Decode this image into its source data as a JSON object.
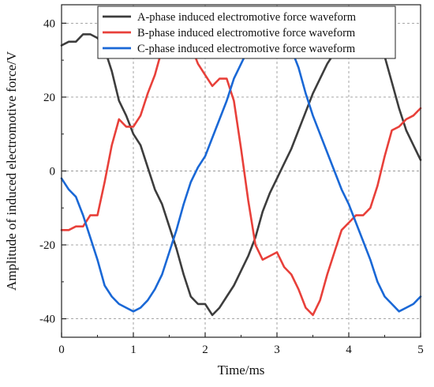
{
  "chart_data": {
    "type": "line",
    "xlabel": "Time/ms",
    "ylabel": "Amplitude of induced electromotive force/V",
    "xlim": [
      0,
      5
    ],
    "ylim": [
      -45,
      45
    ],
    "xticks": [
      0,
      1,
      2,
      3,
      4,
      5
    ],
    "yticks": [
      -40,
      -20,
      0,
      20,
      40
    ],
    "xtick_labels": [
      "0",
      "1",
      "2",
      "3",
      "4",
      "5"
    ],
    "ytick_labels": [
      "-40",
      "-20",
      "0",
      "20",
      "40"
    ],
    "grid": true,
    "legend_position": "top-right",
    "series": [
      {
        "name": "A-phase induced electromotive force waveform",
        "color": "#3d3d3d",
        "x": [
          0,
          0.1,
          0.2,
          0.3,
          0.4,
          0.5,
          0.6,
          0.7,
          0.8,
          0.9,
          1.0,
          1.1,
          1.2,
          1.3,
          1.4,
          1.5,
          1.6,
          1.7,
          1.8,
          1.9,
          2.0,
          2.1,
          2.2,
          2.3,
          2.4,
          2.5,
          2.6,
          2.7,
          2.8,
          2.9,
          3.0,
          3.1,
          3.2,
          3.3,
          3.4,
          3.5,
          3.6,
          3.7,
          3.8,
          3.9,
          4.0,
          4.1,
          4.2,
          4.3,
          4.4,
          4.5,
          4.6,
          4.7,
          4.8,
          4.9,
          5.0
        ],
        "y": [
          34,
          35,
          35,
          37,
          37,
          36,
          33,
          27,
          19,
          15,
          10,
          7,
          1,
          -5,
          -9,
          -15,
          -21,
          -28,
          -34,
          -36,
          -36,
          -39,
          -37,
          -34,
          -31,
          -27,
          -23,
          -18,
          -11,
          -6,
          -2,
          2,
          6,
          11,
          16,
          21,
          25,
          29,
          32,
          35,
          36,
          38,
          36,
          37,
          35,
          31,
          24,
          17,
          11,
          7,
          3
        ]
      },
      {
        "name": "B-phase induced electromotive force waveform",
        "color": "#e8403a",
        "x": [
          0,
          0.1,
          0.2,
          0.3,
          0.4,
          0.5,
          0.6,
          0.7,
          0.8,
          0.9,
          1.0,
          1.1,
          1.2,
          1.3,
          1.4,
          1.5,
          1.6,
          1.7,
          1.8,
          1.9,
          2.0,
          2.1,
          2.2,
          2.3,
          2.4,
          2.5,
          2.6,
          2.7,
          2.8,
          2.9,
          3.0,
          3.1,
          3.2,
          3.3,
          3.4,
          3.5,
          3.6,
          3.7,
          3.8,
          3.9,
          4.0,
          4.1,
          4.2,
          4.3,
          4.4,
          4.5,
          4.6,
          4.7,
          4.8,
          4.9,
          5.0
        ],
        "y": [
          -16,
          -16,
          -15,
          -15,
          -12,
          -12,
          -3,
          7,
          14,
          12,
          12,
          15,
          21,
          26,
          33,
          39,
          39,
          36,
          34,
          29,
          26,
          23,
          25,
          25,
          19,
          6,
          -8,
          -20,
          -24,
          -23,
          -22,
          -26,
          -28,
          -32,
          -37,
          -39,
          -35,
          -28,
          -22,
          -16,
          -14,
          -12,
          -12,
          -10,
          -4,
          4,
          11,
          12,
          14,
          15,
          17
        ]
      },
      {
        "name": "C-phase induced electromotive force waveform",
        "color": "#1a68d6",
        "x": [
          0,
          0.1,
          0.2,
          0.3,
          0.4,
          0.5,
          0.6,
          0.7,
          0.8,
          0.9,
          1.0,
          1.1,
          1.2,
          1.3,
          1.4,
          1.5,
          1.6,
          1.7,
          1.8,
          1.9,
          2.0,
          2.1,
          2.2,
          2.3,
          2.4,
          2.5,
          2.6,
          2.7,
          2.8,
          2.9,
          3.0,
          3.1,
          3.2,
          3.3,
          3.4,
          3.5,
          3.6,
          3.7,
          3.8,
          3.9,
          4.0,
          4.1,
          4.2,
          4.3,
          4.4,
          4.5,
          4.6,
          4.7,
          4.8,
          4.9,
          5.0
        ],
        "y": [
          -2,
          -5,
          -7,
          -12,
          -18,
          -24,
          -31,
          -34,
          -36,
          -37,
          -38,
          -37,
          -35,
          -32,
          -28,
          -22,
          -16,
          -9,
          -3,
          1,
          4,
          9,
          14,
          19,
          25,
          29,
          33,
          35,
          37,
          38,
          37,
          36,
          33,
          28,
          21,
          15,
          10,
          5,
          0,
          -5,
          -9,
          -14,
          -19,
          -24,
          -30,
          -34,
          -36,
          -38,
          -37,
          -36,
          -34
        ]
      }
    ]
  }
}
